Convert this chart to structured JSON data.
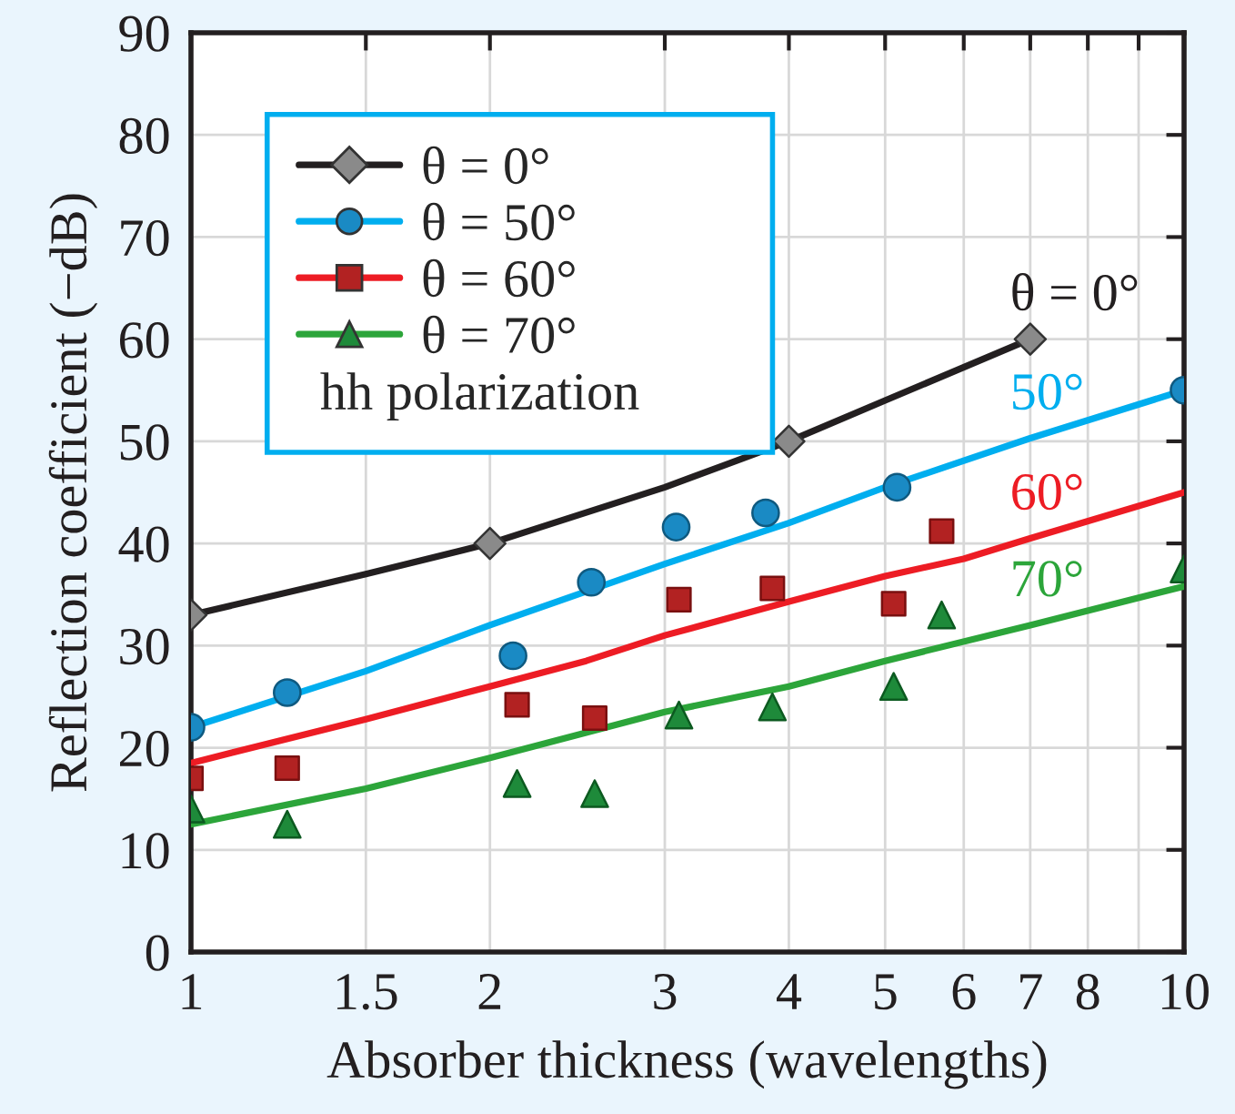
{
  "chart_data": {
    "type": "scatter",
    "xlabel": "Absorber thickness (wavelengths)",
    "ylabel": "Reflection coefficient (−dB)",
    "log": "x",
    "xlim": [
      1,
      10
    ],
    "ylim": [
      0,
      90
    ],
    "xticks": [
      1,
      1.5,
      2,
      3,
      4,
      5,
      6,
      7,
      8,
      {
        "value": 9,
        "label": null
      },
      10
    ],
    "yticks": [
      0,
      10,
      20,
      30,
      40,
      50,
      60,
      70,
      80,
      90
    ],
    "grid": true,
    "legend": "top left",
    "series": [
      {
        "name": "θ = 0°",
        "marker": "diamond",
        "color": "#8a8a8a",
        "x": [
          1,
          2,
          4,
          7
        ],
        "values": [
          33,
          40,
          50,
          60
        ]
      },
      {
        "name": "θ = 50°",
        "marker": "circle",
        "color": "#1a8ac4",
        "x": [
          1,
          1.25,
          2.11,
          2.53,
          3.08,
          3.79,
          5.14,
          10
        ],
        "values": [
          22,
          25.4,
          29,
          36.2,
          41.6,
          43,
          45.5,
          55
        ]
      },
      {
        "name": "θ = 60°",
        "marker": "square",
        "color": "#b22222",
        "x": [
          1,
          1.25,
          2.13,
          2.55,
          3.1,
          3.85,
          5.1,
          5.7
        ],
        "values": [
          17,
          18,
          24.2,
          22.9,
          34.5,
          35.6,
          34.1,
          41.2
        ]
      },
      {
        "name": "θ = 70°",
        "marker": "triangle",
        "color": "#1e8a3a",
        "x": [
          1,
          1.25,
          2.13,
          2.55,
          3.1,
          3.85,
          5.1,
          5.7,
          10
        ],
        "values": [
          14,
          12.5,
          16.5,
          15.5,
          23.2,
          24,
          26,
          33,
          37.5
        ]
      },
      {
        "type": "line",
        "name": "θ = 0°",
        "color": "#231f20",
        "x": [
          1,
          1.5,
          2,
          3,
          4,
          5,
          7
        ],
        "values": [
          33,
          37,
          40,
          45.5,
          50,
          54,
          60
        ]
      },
      {
        "type": "line",
        "name": "50°",
        "color": "#00aeef",
        "x": [
          1,
          1.5,
          2,
          3,
          4,
          5,
          7,
          10
        ],
        "values": [
          22,
          27.5,
          32,
          38,
          42,
          45.5,
          50.3,
          55
        ]
      },
      {
        "type": "line",
        "name": "60°",
        "color": "#ed1c24",
        "x": [
          1,
          1.5,
          2,
          2.5,
          3,
          4,
          5,
          6,
          7,
          10
        ],
        "values": [
          18.5,
          22.8,
          26,
          28.5,
          31,
          34.3,
          36.8,
          38.5,
          40.5,
          45
        ]
      },
      {
        "type": "line",
        "name": "70°",
        "color": "#2ca53a",
        "x": [
          1,
          1.5,
          2,
          3,
          4,
          5,
          7,
          10
        ],
        "values": [
          12.5,
          16,
          19,
          23.5,
          26,
          28.5,
          32,
          35.8
        ]
      }
    ],
    "annotations": [
      "hh polarization"
    ]
  }
}
